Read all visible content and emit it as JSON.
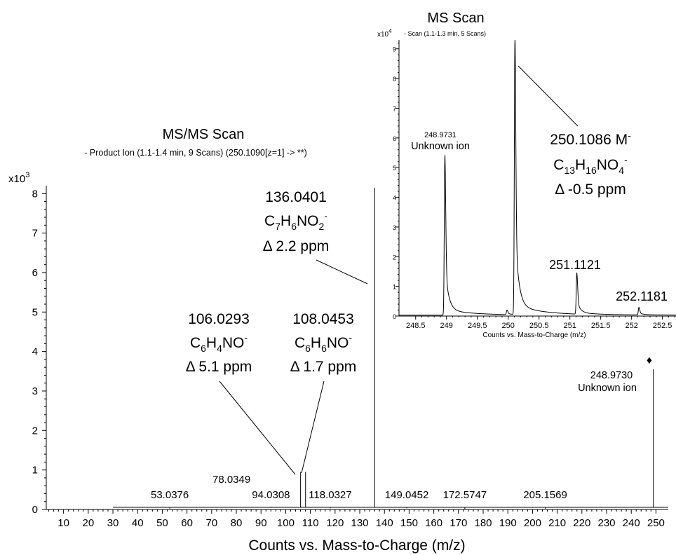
{
  "chart_data": [
    {
      "type": "line",
      "title": "MS/MS Scan",
      "subtitle": "- Product Ion (1.1-1.4 min, 9 Scans) (250.1090[z=1] -> **)",
      "y_multiplier_label": "x10",
      "y_multiplier_exp": "3",
      "xlabel": "Counts vs. Mass-to-Charge (m/z)",
      "xlim": [
        3,
        255
      ],
      "ylim": [
        0,
        8.2
      ],
      "x_ticks": [
        10,
        20,
        30,
        40,
        50,
        60,
        70,
        80,
        90,
        100,
        110,
        120,
        130,
        140,
        150,
        160,
        170,
        180,
        190,
        200,
        210,
        220,
        230,
        240,
        250
      ],
      "y_ticks": [
        0,
        1,
        2,
        3,
        4,
        5,
        6,
        7,
        8
      ],
      "baseline_start": 30,
      "peaks": [
        {
          "x": 53.0376,
          "y": 0.02,
          "label": "53.0376"
        },
        {
          "x": 78.0349,
          "y": 0.06,
          "label": "78.0349"
        },
        {
          "x": 94.0308,
          "y": 0.04,
          "label": "94.0308"
        },
        {
          "x": 106.0293,
          "y": 0.95
        },
        {
          "x": 108.0453,
          "y": 0.95
        },
        {
          "x": 118.0327,
          "y": 0.03,
          "label": "118.0327"
        },
        {
          "x": 136.0401,
          "y": 8.15
        },
        {
          "x": 149.0452,
          "y": 0.03,
          "label": "149.0452"
        },
        {
          "x": 172.5747,
          "y": 0.01,
          "label": "172.5747"
        },
        {
          "x": 205.1569,
          "y": 0.02,
          "label": "205.1569"
        },
        {
          "x": 248.973,
          "y": 3.55
        }
      ],
      "annotations": [
        {
          "mz": "136.0401",
          "formula": [
            "C",
            "7",
            "H",
            "6",
            "NO",
            "2",
            "-"
          ],
          "delta": "Δ 2.2 ppm"
        },
        {
          "mz": "106.0293",
          "formula": [
            "C",
            "6",
            "H",
            "4",
            "NO",
            "",
            "-"
          ],
          "delta": "Δ 5.1 ppm"
        },
        {
          "mz": "108.0453",
          "formula": [
            "C",
            "6",
            "H",
            "6",
            "NO",
            "",
            "-"
          ],
          "delta": "Δ 1.7 ppm"
        },
        {
          "mz": "248.9730",
          "note": "Unknown ion",
          "marker": "♦"
        }
      ]
    },
    {
      "type": "line",
      "title": "MS Scan",
      "subtitle": "- Scan (1.1-1.3 min, 5 Scans)",
      "y_multiplier_label": "x10",
      "y_multiplier_exp": "4",
      "xlabel": "Counts vs. Mass-to-Charge (m/z)",
      "xlim": [
        248.23,
        252.72
      ],
      "ylim": [
        0,
        9.3
      ],
      "x_ticks": [
        "248.5",
        "249",
        "249.5",
        "250",
        "250.5",
        "251",
        "251.5",
        "252",
        "252.5"
      ],
      "y_ticks": [
        0,
        1,
        2,
        3,
        4,
        5,
        6,
        7,
        8,
        9
      ],
      "peaks": [
        {
          "x": 248.973,
          "y": 5.3
        },
        {
          "x": 249.98,
          "y": 0.15
        },
        {
          "x": 250.1086,
          "y": 9.2
        },
        {
          "x": 251.1121,
          "y": 1.35
        },
        {
          "x": 252.1181,
          "y": 0.25
        }
      ],
      "annotations": [
        {
          "mz": "248.9731",
          "note": "Unknown ion"
        },
        {
          "mz": "250.1086 M",
          "mz_sup": "-",
          "formula": [
            "C",
            "13",
            "H",
            "16",
            "NO",
            "4",
            "-"
          ],
          "delta": "Δ -0.5 ppm"
        },
        {
          "mz": "251.1121"
        },
        {
          "mz": "252.1181"
        }
      ]
    }
  ]
}
